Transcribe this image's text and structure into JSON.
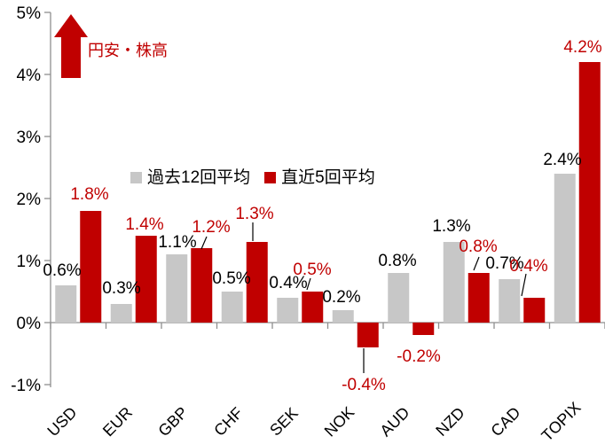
{
  "chart_data": {
    "type": "bar",
    "title": "",
    "categories": [
      "USD",
      "EUR",
      "GBP",
      "CHF",
      "SEK",
      "NOK",
      "AUD",
      "NZD",
      "CAD",
      "TOPIX"
    ],
    "series": [
      {
        "name": "過去12回平均",
        "color": "#c7c7c7",
        "label_color": "#000000",
        "values": [
          0.6,
          0.3,
          1.1,
          0.5,
          0.4,
          0.2,
          0.8,
          1.3,
          0.7,
          2.4
        ],
        "labels": [
          "0.6%",
          "0.3%",
          "1.1%",
          "0.5%",
          "0.4%",
          "0.2%",
          "0.8%",
          "1.3%",
          "0.7%",
          "2.4%"
        ]
      },
      {
        "name": "直近5回平均",
        "color": "#c00000",
        "label_color": "#c00000",
        "values": [
          1.8,
          1.4,
          1.2,
          1.3,
          0.5,
          -0.4,
          -0.2,
          0.8,
          0.4,
          4.2
        ],
        "labels": [
          "1.8%",
          "1.4%",
          "1.2%",
          "1.3%",
          "0.5%",
          "-0.4%",
          "-0.2%",
          "0.8%",
          "0.4%",
          "4.2%"
        ]
      }
    ],
    "ylim": [
      -1,
      5
    ],
    "yticks": [
      {
        "value": 5,
        "label": "5%"
      },
      {
        "value": 4,
        "label": "4%"
      },
      {
        "value": 3,
        "label": "3%"
      },
      {
        "value": 2,
        "label": "2%"
      },
      {
        "value": 1,
        "label": "1%"
      },
      {
        "value": 0,
        "label": "0%"
      },
      {
        "value": -1,
        "label": "-1%"
      }
    ],
    "grid": false,
    "legend_position": "inside-top-center",
    "annotation": {
      "icon": "up-arrow",
      "text": "円安・株高",
      "color": "#c00000"
    }
  },
  "colors": {
    "accent_red": "#c00000",
    "bar_gray": "#c7c7c7",
    "axis_gray": "#8f8f8f",
    "label_black": "#000000",
    "background": "#ffffff"
  }
}
